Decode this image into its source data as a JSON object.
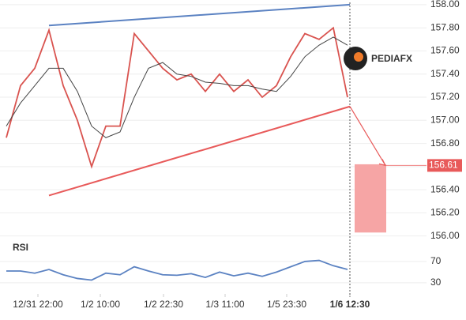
{
  "chart_data": [
    {
      "type": "line",
      "xlim": [
        0,
        540
      ],
      "ylim": [
        155.95,
        158.02
      ],
      "xticks": [
        {
          "value": 48,
          "label": "12/31 22:00"
        },
        {
          "value": 127,
          "label": "1/2 10:00"
        },
        {
          "value": 207,
          "label": "1/2 22:30"
        },
        {
          "value": 285,
          "label": "1/3 11:00"
        },
        {
          "value": 363,
          "label": "1/5 23:30"
        },
        {
          "value": 443,
          "label": "1/6 12:30"
        }
      ],
      "yticks": [
        {
          "value": 156,
          "label": "156.00"
        },
        {
          "value": 156.2,
          "label": "156.20"
        },
        {
          "value": 156.4,
          "label": "156.40"
        },
        {
          "value": 156.6,
          "label": "156.60"
        },
        {
          "value": 156.8,
          "label": "156.80"
        },
        {
          "value": 157,
          "label": "157.00"
        },
        {
          "value": 157.2,
          "label": "157.20"
        },
        {
          "value": 157.4,
          "label": "157.40"
        },
        {
          "value": 157.6,
          "label": "157.60"
        },
        {
          "value": 157.8,
          "label": "157.80"
        },
        {
          "value": 158,
          "label": "158.00"
        }
      ],
      "x": [
        8,
        26,
        44,
        62,
        80,
        98,
        116,
        134,
        152,
        170,
        188,
        206,
        224,
        242,
        260,
        278,
        296,
        314,
        332,
        350,
        368,
        386,
        404,
        422,
        440
      ],
      "series": [
        {
          "color": "#d9534f",
          "values": [
            156.85,
            157.3,
            157.45,
            157.78,
            157.3,
            157.0,
            156.6,
            156.95,
            156.95,
            157.75,
            157.6,
            157.45,
            157.35,
            157.4,
            157.25,
            157.4,
            157.25,
            157.35,
            157.2,
            157.3,
            157.55,
            157.75,
            157.7,
            157.8,
            157.2
          ]
        },
        {
          "color": "#444444",
          "values": [
            156.95,
            157.15,
            157.3,
            157.45,
            157.45,
            157.25,
            156.95,
            156.85,
            156.9,
            157.2,
            157.45,
            157.5,
            157.4,
            157.38,
            157.33,
            157.32,
            157.3,
            157.3,
            157.27,
            157.25,
            157.38,
            157.55,
            157.65,
            157.72,
            157.65
          ]
        }
      ],
      "trendlines": [
        {
          "x": [
            62,
            443
          ],
          "values": [
            157.82,
            158.0
          ],
          "color": "#5b82c2"
        },
        {
          "x": [
            62,
            443
          ],
          "values": [
            156.35,
            157.12
          ],
          "color": "#e85a5a"
        }
      ],
      "target": {
        "value": 156.61,
        "label": "156.61"
      },
      "target_zone": [
        156.03,
        156.62
      ],
      "logo": "PEDIAFX"
    },
    {
      "type": "line",
      "title": "RSI",
      "xlim": [
        0,
        540
      ],
      "ylim": [
        0,
        100
      ],
      "yticks": [
        30,
        70
      ],
      "x": [
        8,
        26,
        44,
        62,
        80,
        98,
        116,
        134,
        152,
        170,
        188,
        206,
        224,
        242,
        260,
        278,
        296,
        314,
        332,
        350,
        368,
        386,
        404,
        422,
        440
      ],
      "series": [
        {
          "color": "#5b82c2",
          "values": [
            52,
            52,
            48,
            55,
            45,
            38,
            35,
            48,
            45,
            60,
            52,
            45,
            44,
            47,
            40,
            50,
            43,
            48,
            42,
            50,
            60,
            70,
            72,
            62,
            55
          ]
        }
      ]
    }
  ]
}
